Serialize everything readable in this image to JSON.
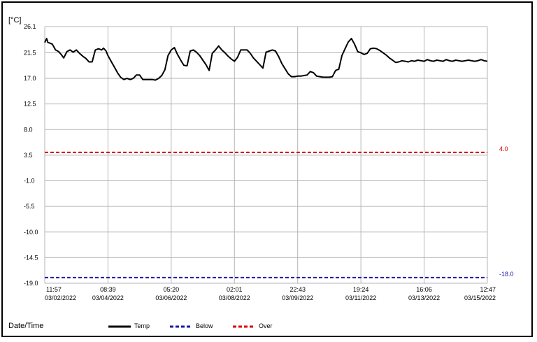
{
  "chart_data": {
    "type": "line",
    "y_unit_label": "[°C]",
    "xlabel": "Date/Time",
    "ylim": [
      -19.0,
      26.1
    ],
    "y_ticks": [
      "26.1",
      "21.5",
      "17.0",
      "12.5",
      "8.0",
      "3.5",
      "-1.0",
      "-5.5",
      "-10.0",
      "-14.5",
      "-19.0"
    ],
    "x_ticks": [
      {
        "time": "11:57",
        "date": "03/02/2022"
      },
      {
        "time": "08:39",
        "date": "03/04/2022"
      },
      {
        "time": "05:20",
        "date": "03/06/2022"
      },
      {
        "time": "02:01",
        "date": "03/08/2022"
      },
      {
        "time": "22:43",
        "date": "03/09/2022"
      },
      {
        "time": "19:24",
        "date": "03/11/2022"
      },
      {
        "time": "16:06",
        "date": "03/13/2022"
      },
      {
        "time": "12:47",
        "date": "03/15/2022"
      }
    ],
    "grid": true,
    "legend": [
      "Temp",
      "Below",
      "Over"
    ],
    "reference_lines": [
      {
        "name": "Over",
        "value": 4.0,
        "label": "4.0",
        "color": "#d40000",
        "style": "dashed"
      },
      {
        "name": "Below",
        "value": -18.0,
        "label": "-18.0",
        "color": "#1a1aa8",
        "style": "dashed"
      }
    ],
    "series": [
      {
        "name": "Temp",
        "color": "#000000",
        "x": [
          0.0,
          0.03,
          0.05,
          0.08,
          0.12,
          0.17,
          0.22,
          0.26,
          0.3,
          0.35,
          0.4,
          0.45,
          0.5,
          0.55,
          0.6,
          0.65,
          0.7,
          0.75,
          0.8,
          0.85,
          0.9,
          0.93,
          0.97,
          1.0,
          1.05,
          1.1,
          1.15,
          1.2,
          1.25,
          1.3,
          1.35,
          1.4,
          1.45,
          1.5,
          1.55,
          1.6,
          1.65,
          1.7,
          1.75,
          1.8,
          1.85,
          1.9,
          1.95,
          2.0,
          2.05,
          2.1,
          2.15,
          2.2,
          2.25,
          2.3,
          2.35,
          2.4,
          2.45,
          2.5,
          2.55,
          2.6,
          2.65,
          2.7,
          2.75,
          2.8,
          2.85,
          2.9,
          2.95,
          3.0,
          3.05,
          3.1,
          3.15,
          3.2,
          3.25,
          3.3,
          3.35,
          3.4,
          3.45,
          3.5,
          3.55,
          3.6,
          3.65,
          3.7,
          3.75,
          3.8,
          3.85,
          3.9,
          3.95,
          4.0,
          4.05,
          4.1,
          4.15,
          4.2,
          4.25,
          4.3,
          4.35,
          4.4,
          4.45,
          4.5,
          4.55,
          4.6,
          4.65,
          4.7,
          4.75,
          4.8,
          4.85,
          4.9,
          4.95,
          5.0,
          5.05,
          5.1,
          5.15,
          5.2,
          5.25,
          5.3,
          5.35,
          5.4,
          5.45,
          5.5,
          5.55,
          5.6,
          5.65,
          5.7,
          5.75,
          5.8,
          5.85,
          5.9,
          5.95,
          6.0,
          6.05,
          6.1,
          6.15,
          6.2,
          6.25,
          6.3,
          6.35,
          6.4,
          6.45,
          6.5,
          6.55,
          6.6,
          6.65,
          6.7,
          6.75,
          6.8,
          6.85,
          6.9,
          6.95,
          7.0
        ],
        "values": [
          23.3,
          24.0,
          23.3,
          23.2,
          23.0,
          22.0,
          21.7,
          21.2,
          20.6,
          21.7,
          22.0,
          21.6,
          22.0,
          21.4,
          20.9,
          20.5,
          19.9,
          19.9,
          22.0,
          22.2,
          22.0,
          22.3,
          21.8,
          21.0,
          20.0,
          19.0,
          18.0,
          17.2,
          16.8,
          17.0,
          16.8,
          17.0,
          17.6,
          17.6,
          16.8,
          16.8,
          16.8,
          16.8,
          16.7,
          17.0,
          17.5,
          18.5,
          21.0,
          22.0,
          22.4,
          21.2,
          20.2,
          19.3,
          19.2,
          21.8,
          22.0,
          21.6,
          21.0,
          20.2,
          19.4,
          18.4,
          21.4,
          22.0,
          22.7,
          22.0,
          21.5,
          20.9,
          20.4,
          20.0,
          20.7,
          22.0,
          22.0,
          22.0,
          21.4,
          20.6,
          20.0,
          19.4,
          18.8,
          21.6,
          21.8,
          22.0,
          21.8,
          20.8,
          19.6,
          18.7,
          17.8,
          17.3,
          17.3,
          17.4,
          17.4,
          17.5,
          17.6,
          18.2,
          18.0,
          17.4,
          17.3,
          17.2,
          17.2,
          17.2,
          17.3,
          18.4,
          18.6,
          21.0,
          22.2,
          23.4,
          24.0,
          23.0,
          21.7,
          21.5,
          21.2,
          21.4,
          22.2,
          22.3,
          22.2,
          21.9,
          21.5,
          21.1,
          20.6,
          20.2,
          19.8,
          19.9,
          20.1,
          20.0,
          19.9,
          20.1,
          20.0,
          20.2,
          20.1,
          20.0,
          20.3,
          20.1,
          20.0,
          20.2,
          20.1,
          20.0,
          20.3,
          20.1,
          20.0,
          20.2,
          20.1,
          20.0,
          20.1,
          20.2,
          20.1,
          20.0,
          20.1,
          20.3,
          20.1,
          20.0
        ]
      }
    ]
  }
}
